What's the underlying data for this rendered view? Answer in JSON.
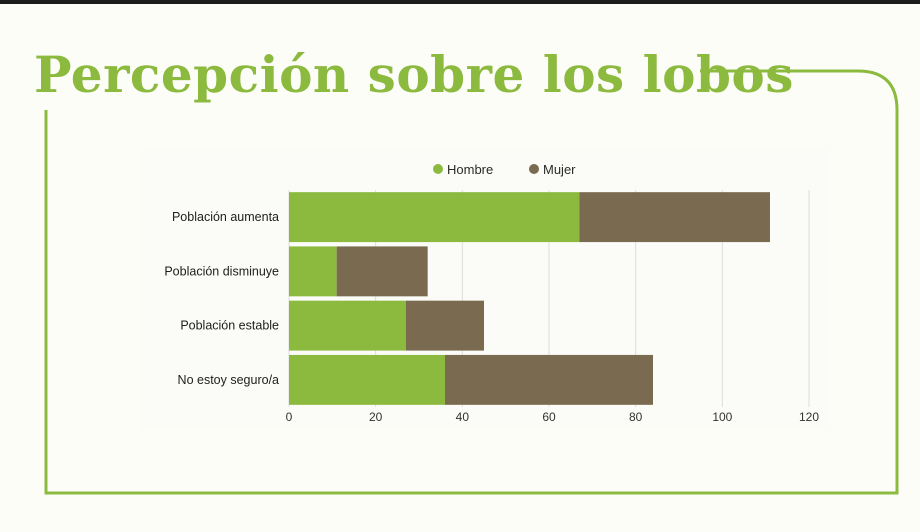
{
  "slide": {
    "title": "Percepción sobre los lobos",
    "accent_color": "#8cba3f"
  },
  "chart_data": {
    "type": "bar",
    "orientation": "horizontal",
    "stacked": true,
    "categories": [
      "Población aumenta",
      "Población disminuye",
      "Población estable",
      "No estoy seguro/a"
    ],
    "series": [
      {
        "name": "Hombre",
        "color": "#8cba3f",
        "values": [
          67,
          11,
          27,
          36
        ]
      },
      {
        "name": "Mujer",
        "color": "#7a6a4f",
        "values": [
          44,
          21,
          18,
          48
        ]
      }
    ],
    "xlim": [
      0,
      120
    ],
    "x_ticks": [
      "0",
      "20",
      "40",
      "60",
      "80",
      "100",
      "120"
    ],
    "grid": true,
    "legend_position": "top"
  }
}
